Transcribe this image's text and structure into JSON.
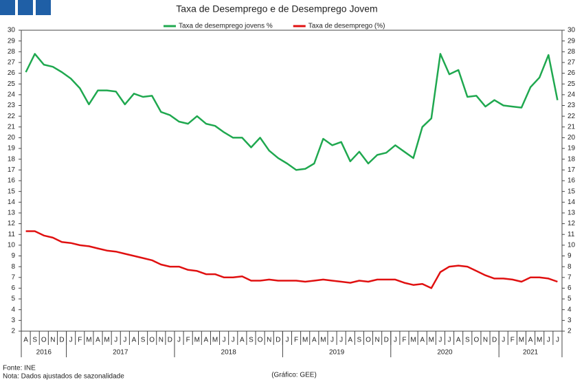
{
  "chart_data": {
    "type": "line",
    "title": "Taxa de Desemprego e de Desemprego Jovem",
    "categories": [
      "A",
      "S",
      "O",
      "N",
      "D",
      "J",
      "F",
      "M",
      "A",
      "M",
      "J",
      "J",
      "A",
      "S",
      "O",
      "N",
      "D",
      "J",
      "F",
      "M",
      "A",
      "M",
      "J",
      "J",
      "A",
      "S",
      "O",
      "N",
      "D",
      "J",
      "F",
      "M",
      "A",
      "M",
      "J",
      "J",
      "A",
      "S",
      "O",
      "N",
      "D",
      "J",
      "F",
      "M",
      "A",
      "M",
      "J",
      "J",
      "A",
      "S",
      "O",
      "N",
      "D",
      "J",
      "F",
      "M",
      "A",
      "M",
      "J",
      "J"
    ],
    "years": [
      "2016",
      "2017",
      "2018",
      "2019",
      "2020",
      "2021"
    ],
    "series": [
      {
        "name": "Taxa de desemprego jovens %",
        "color": "#1fa84f",
        "values": [
          26.1,
          27.8,
          26.8,
          26.6,
          26.1,
          25.5,
          24.6,
          23.1,
          24.4,
          24.4,
          24.3,
          23.1,
          24.1,
          23.8,
          23.9,
          22.4,
          22.1,
          21.5,
          21.3,
          22.0,
          21.3,
          21.1,
          20.5,
          20.0,
          20.0,
          19.1,
          20.0,
          18.8,
          18.1,
          17.6,
          17.0,
          17.1,
          17.6,
          19.9,
          19.3,
          19.6,
          17.8,
          18.7,
          17.6,
          18.4,
          18.6,
          19.3,
          18.7,
          18.1,
          21.0,
          21.8,
          27.8,
          25.9,
          26.3,
          23.8,
          23.9,
          22.9,
          23.5,
          23.0,
          22.9,
          22.8,
          24.7,
          25.6,
          27.7,
          23.5
        ]
      },
      {
        "name": "Taxa de desemprego (%)",
        "color": "#e01010",
        "values": [
          11.3,
          11.3,
          10.9,
          10.7,
          10.3,
          10.2,
          10.0,
          9.9,
          9.7,
          9.5,
          9.4,
          9.2,
          9.0,
          8.8,
          8.6,
          8.2,
          8.0,
          8.0,
          7.7,
          7.6,
          7.3,
          7.3,
          7.0,
          7.0,
          7.1,
          6.7,
          6.7,
          6.8,
          6.7,
          6.7,
          6.7,
          6.6,
          6.7,
          6.8,
          6.7,
          6.6,
          6.5,
          6.7,
          6.6,
          6.8,
          6.8,
          6.8,
          6.5,
          6.3,
          6.4,
          6.0,
          7.5,
          8.0,
          8.1,
          8.0,
          7.6,
          7.2,
          6.9,
          6.9,
          6.8,
          6.6,
          7.0,
          7.0,
          6.9,
          6.6
        ]
      }
    ],
    "ylim": [
      2,
      30
    ],
    "yticks": [
      2,
      3,
      4,
      5,
      6,
      7,
      8,
      9,
      10,
      11,
      12,
      13,
      14,
      15,
      16,
      17,
      18,
      19,
      20,
      21,
      22,
      23,
      24,
      25,
      26,
      27,
      28,
      29,
      30
    ],
    "y2lim": [
      2,
      30
    ],
    "y2ticks": [
      2,
      3,
      4,
      5,
      6,
      7,
      8,
      9,
      10,
      11,
      12,
      13,
      14,
      15,
      16,
      17,
      18,
      19,
      20,
      21,
      22,
      23,
      24,
      25,
      26,
      27,
      28,
      29,
      30
    ],
    "grid": false,
    "source": "Fonte: INE",
    "note": "Nota: Dados ajustados de sazonalidade",
    "credit": "(Gráfico: GEE)"
  }
}
